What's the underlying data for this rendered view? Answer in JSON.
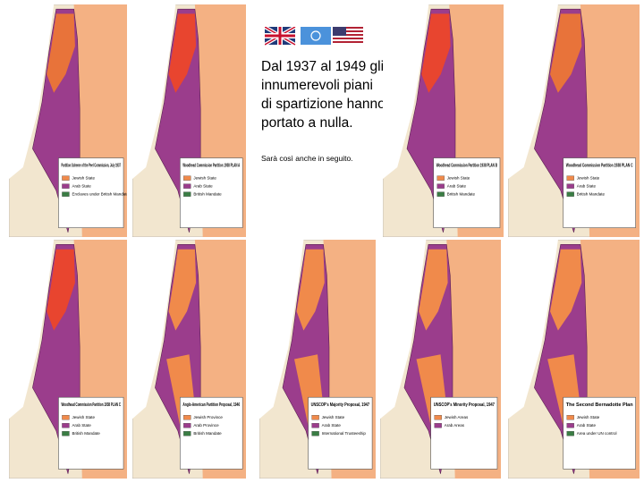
{
  "heading": "Dal 1937 al 1949 gli innumerevoli piani di spartizione hanno portato a nulla.",
  "subheading": "Sarà così anche in seguito.",
  "maps": [
    {
      "title": "Partition Scheme of the Peel Commission, July 1937",
      "legend": [
        "Jewish State",
        "Arab State",
        "Enclaves under British Mandate"
      ]
    },
    {
      "title": "Woodhead Commission Partition 1938 PLAN A",
      "legend": [
        "Jewish State",
        "Arab State",
        "British Mandate"
      ]
    },
    {
      "title": "Woodhead Commission Partition 1938 PLAN B",
      "legend": [
        "Jewish State",
        "Arab State",
        "British Mandate"
      ]
    },
    {
      "title": "Woodhead Commission Partition 1938 PLAN C",
      "legend": [
        "Jewish State",
        "Arab State",
        "British Mandate"
      ]
    },
    {
      "title": "Woodhead Commission Partition 1938 PLAN C",
      "legend": [
        "Jewish State",
        "Arab State",
        "British Mandate"
      ]
    },
    {
      "title": "Anglo-American Partition Proposal, 1946",
      "legend": [
        "Jewish Province",
        "Arab Province",
        "British Mandate"
      ]
    },
    {
      "title": "UNSCOP's Majority Proposal, 1947",
      "legend": [
        "Jewish State",
        "Arab State",
        "International Trusteeship"
      ]
    },
    {
      "title": "UNSCOP's Minority Proposal, 1947",
      "legend": [
        "Jewish Areas",
        "Arab Areas"
      ]
    },
    {
      "title": "The Second Bernadotte Plan",
      "legend": [
        "Jewish State",
        "Arab State",
        "Area under UN control"
      ]
    }
  ]
}
